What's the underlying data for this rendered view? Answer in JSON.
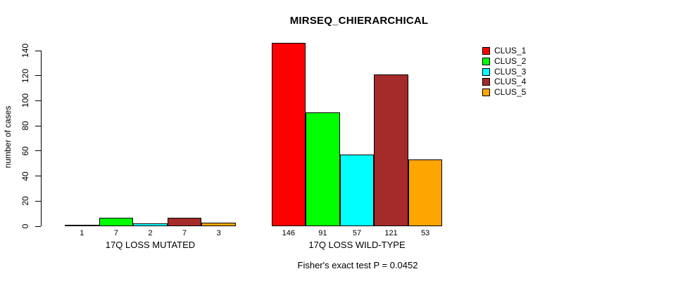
{
  "chart_data": {
    "type": "bar",
    "title": "MIRSEQ_CHIERARCHICAL",
    "subtitle": "Fisher's exact test P = 0.0452",
    "ylabel": "number of cases",
    "xlabel": "",
    "categories": [
      "17Q LOSS MUTATED",
      "17Q LOSS WILD-TYPE"
    ],
    "series": [
      {
        "name": "CLUS_1",
        "color": "#FF0000",
        "values": [
          1,
          146
        ]
      },
      {
        "name": "CLUS_2",
        "color": "#00FF00",
        "values": [
          7,
          91
        ]
      },
      {
        "name": "CLUS_3",
        "color": "#00FFFF",
        "values": [
          2,
          57
        ]
      },
      {
        "name": "CLUS_4",
        "color": "#A52A2A",
        "values": [
          7,
          121
        ]
      },
      {
        "name": "CLUS_5",
        "color": "#FFA500",
        "values": [
          3,
          53
        ]
      }
    ],
    "yticks": [
      0,
      20,
      40,
      60,
      80,
      100,
      120,
      140
    ],
    "ylim": [
      0,
      146
    ],
    "grid": false,
    "legend_position": "top-right",
    "bar_border_color": "#000000",
    "background_color": "#FFFFFF"
  }
}
